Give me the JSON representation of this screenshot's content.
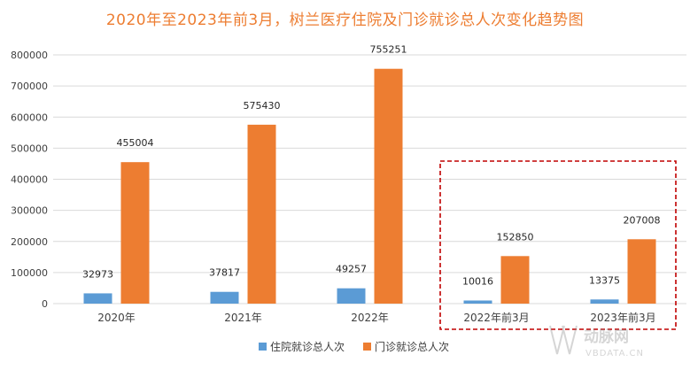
{
  "chart_data": {
    "type": "bar",
    "title": "2020年至2023年前3月，树兰医疗住院及门诊就诊总人次变化趋势图",
    "categories": [
      "2020年",
      "2021年",
      "2022年",
      "2022年前3月",
      "2023年前3月"
    ],
    "series": [
      {
        "name": "住院就诊总人次",
        "values": [
          32973,
          37817,
          49257,
          10016,
          13375
        ],
        "color": "#5B9BD5"
      },
      {
        "name": "门诊就诊总人次",
        "values": [
          455004,
          575430,
          755251,
          152850,
          207008
        ],
        "color": "#ED7D31"
      }
    ],
    "ylim": [
      0,
      800000
    ],
    "yticks": [
      "0",
      "100000",
      "200000",
      "300000",
      "400000",
      "500000",
      "600000",
      "700000",
      "800000"
    ],
    "grid": true,
    "legend": "bottom",
    "highlight_categories": [
      "2022年前3月",
      "2023年前3月"
    ],
    "highlight_color": "#C00000",
    "watermark": "动脉网 VBDATA.CN"
  }
}
